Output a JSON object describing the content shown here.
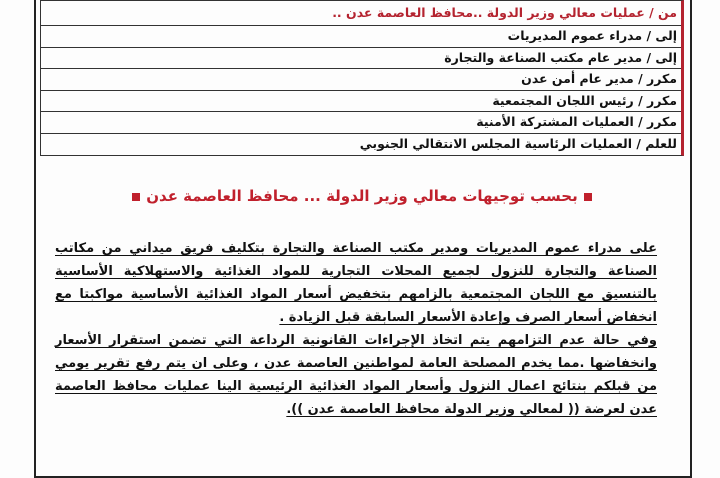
{
  "header_table": {
    "rows": [
      "من / عمليات معالي وزير الدولة ..محافظ العاصمة عدن ..",
      "إلى / مدراء عموم المديريات",
      "إلى / مدير عام مكتب الصناعة والتجارة",
      "مكرر / مدير عام أمن عدن",
      "مكرر / رئيس اللجان المجتمعية",
      "مكرر / العمليات المشتركة الأمنية",
      "للعلم / العمليات الرئاسية المجلس الانتقالي الجنوبي"
    ]
  },
  "heading": "بحسب توجيهات معالي وزير الدولة ... محافظ العاصمة عدن",
  "accent_color": "#c0202c",
  "paragraphs": [
    "على مدراء عموم المديريات ومدير مكتب الصناعة والتجارة بتكليف فريق ميداني من مكاتب الصناعة والتجارة للنزول لجميع المحلات التجارية للمواد الغذائية والاستهلاكية الأساسية بالتنسيق مع اللجان المجتمعية بالزامهم بتخفيض أسعار المواد الغذائية الأساسية مواكبتا مع انخفاض أسعار الصرف وإعادة الأسعار السابقة قبل الزيادة .",
    "وفي حالة عدم التزامهم يتم اتخاذ الإجراءات القانونية الرداعة التي تضمن استقرار الأسعار وانخفاضها .مما يخدم المصلحة العامة لمواطنين العاصمة عدن ، وعلى ان يتم رفع تقرير يومي من قبلكم بنتائج اعمال النزول وأسعار المواد الغذائية الرئيسية الينا عمليات محافظ العاصمة عدن لعرضة (( لمعالي وزير الدولة محافظ العاصمة عدن ))."
  ]
}
